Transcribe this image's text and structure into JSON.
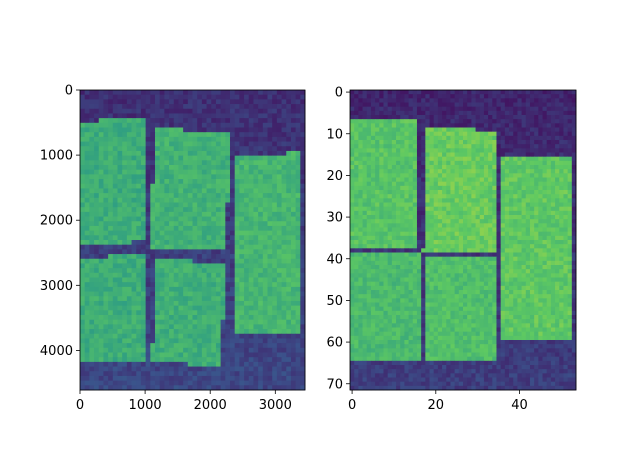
{
  "figure": {
    "background": "#ffffff",
    "colormap": [
      "#440154",
      "#3b528b",
      "#21918c",
      "#5ec962",
      "#fde725"
    ]
  },
  "chart_data": [
    {
      "type": "heatmap",
      "title": "",
      "xlabel": "",
      "ylabel": "",
      "xlim": [
        0,
        3456
      ],
      "ylim": [
        4608,
        0
      ],
      "xticks": [
        0,
        1000,
        2000,
        3000
      ],
      "yticks": [
        0,
        1000,
        2000,
        3000,
        4000
      ],
      "background_level": 0.18,
      "regions": [
        {
          "name": "",
          "polygon": [
            [
              20,
              480
            ],
            [
              1000,
              440
            ],
            [
              1000,
              2330
            ],
            [
              30,
              2380
            ]
          ],
          "level": 0.62
        },
        {
          "name": "",
          "polygon": [
            [
              1150,
              580
            ],
            [
              2310,
              660
            ],
            [
              2240,
              2480
            ],
            [
              1080,
              2420
            ]
          ],
          "level": 0.64
        },
        {
          "name": "",
          "polygon": [
            [
              2370,
              980
            ],
            [
              3390,
              970
            ],
            [
              3390,
              3760
            ],
            [
              2350,
              3770
            ]
          ],
          "level": 0.66
        },
        {
          "name": "",
          "polygon": [
            [
              20,
              2560
            ],
            [
              1040,
              2550
            ],
            [
              1040,
              4180
            ],
            [
              30,
              4160
            ]
          ],
          "level": 0.62
        },
        {
          "name": "",
          "polygon": [
            [
              1180,
              2560
            ],
            [
              2240,
              2700
            ],
            [
              2160,
              4240
            ],
            [
              1100,
              4180
            ]
          ],
          "level": 0.63
        }
      ]
    },
    {
      "type": "heatmap",
      "title": "",
      "xlabel": "",
      "ylabel": "",
      "xlim": [
        -0.5,
        53.5
      ],
      "ylim": [
        71.5,
        -0.5
      ],
      "xticks": [
        0,
        20,
        40
      ],
      "yticks": [
        0,
        10,
        20,
        30,
        40,
        50,
        60,
        70
      ],
      "background_level": 0.15,
      "regions": [
        {
          "name": "",
          "polygon": [
            [
              0,
              7
            ],
            [
              16,
              6.5
            ],
            [
              16,
              37
            ],
            [
              0,
              38
            ]
          ],
          "level": 0.72
        },
        {
          "name": "",
          "polygon": [
            [
              18,
              8
            ],
            [
              35,
              9.5
            ],
            [
              35,
              39
            ],
            [
              17,
              38
            ]
          ],
          "level": 0.76
        },
        {
          "name": "",
          "polygon": [
            [
              36,
              15.5
            ],
            [
              53,
              15.5
            ],
            [
              53,
              60
            ],
            [
              36,
              60
            ]
          ],
          "level": 0.74
        },
        {
          "name": "",
          "polygon": [
            [
              0,
              39
            ],
            [
              17,
              39
            ],
            [
              17,
              65
            ],
            [
              0,
              65
            ]
          ],
          "level": 0.68
        },
        {
          "name": "",
          "polygon": [
            [
              18,
              40
            ],
            [
              35,
              40
            ],
            [
              35,
              65
            ],
            [
              18,
              65
            ]
          ],
          "level": 0.7
        }
      ]
    }
  ]
}
